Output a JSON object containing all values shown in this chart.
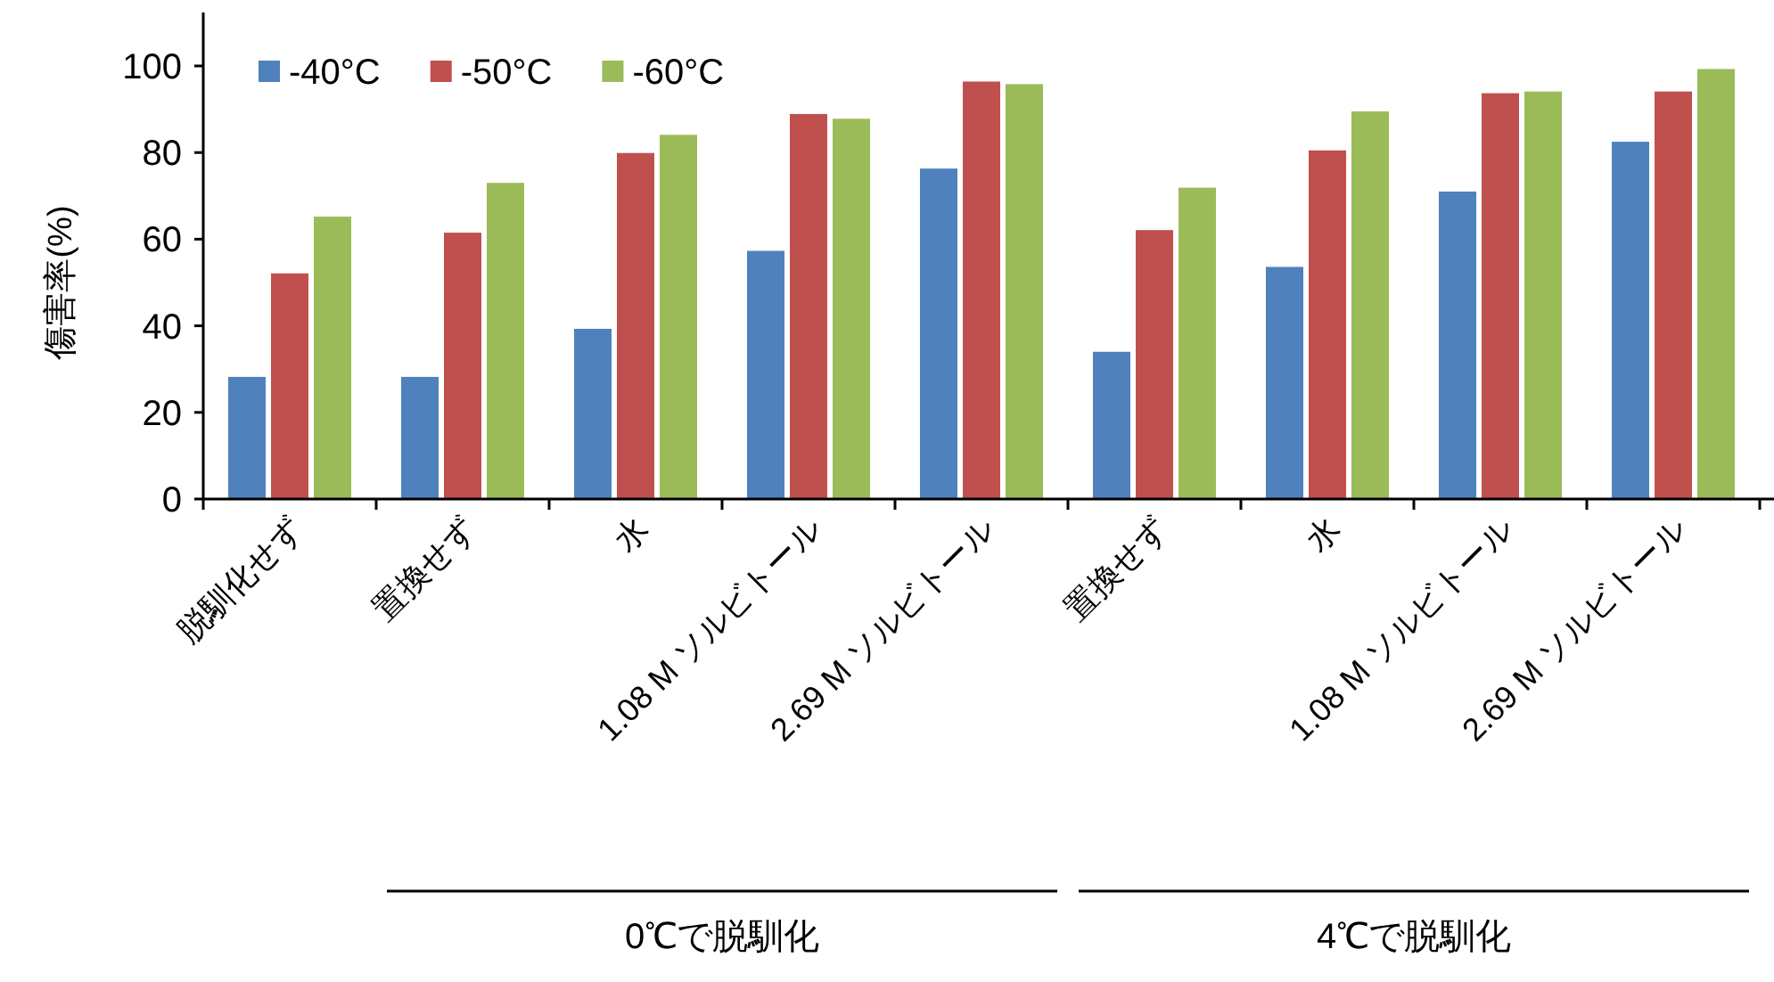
{
  "chart_data": {
    "type": "bar",
    "ylabel": "傷害率(%)",
    "categories": [
      "脱馴化せず",
      "置換せず",
      "水",
      "1.08 M ソルビトール",
      "2.69 M ソルビトール",
      "置換せず",
      "水",
      "1.08 M ソルビトール",
      "2.69 M ソルビトール"
    ],
    "series": [
      {
        "name": "-40°C",
        "color": "#4f81bd",
        "values": [
          28.2,
          28.2,
          39.3,
          57.3,
          76.3,
          34.0,
          53.6,
          71.0,
          82.5
        ]
      },
      {
        "name": "-50°C",
        "color": "#c0504d",
        "values": [
          52.1,
          61.5,
          79.9,
          88.9,
          96.4,
          62.1,
          80.5,
          93.7,
          94.1
        ]
      },
      {
        "name": "-60°C",
        "color": "#9bbb59",
        "values": [
          65.2,
          73.0,
          84.1,
          87.8,
          95.8,
          71.9,
          89.5,
          94.1,
          99.3
        ]
      }
    ],
    "ylim": [
      0,
      100
    ],
    "yticks": [
      0,
      20,
      40,
      60,
      80,
      100
    ],
    "legend": "top left",
    "grid": false,
    "annotations": [
      "0℃で脱馴化",
      "4℃で脱馴化"
    ]
  }
}
